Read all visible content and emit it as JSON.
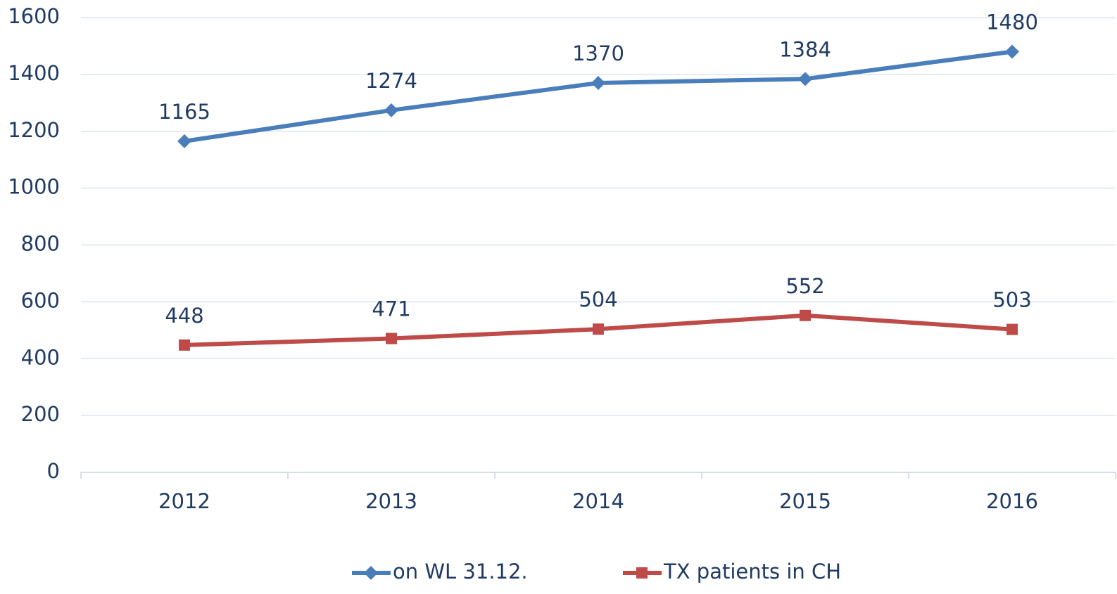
{
  "chart_data": {
    "type": "line",
    "categories": [
      "2012",
      "2013",
      "2014",
      "2015",
      "2016"
    ],
    "series": [
      {
        "name": "on WL 31.12.",
        "color": "#4a7ebb",
        "marker": "diamond",
        "values": [
          1165,
          1274,
          1370,
          1384,
          1480
        ]
      },
      {
        "name": "TX patients in CH",
        "color": "#be4b48",
        "marker": "square",
        "values": [
          448,
          471,
          504,
          552,
          503
        ]
      }
    ],
    "ylim": [
      0,
      1600
    ],
    "yticks": [
      0,
      200,
      400,
      600,
      800,
      1000,
      1200,
      1400,
      1600
    ],
    "grid": true,
    "legend": "bottom"
  }
}
